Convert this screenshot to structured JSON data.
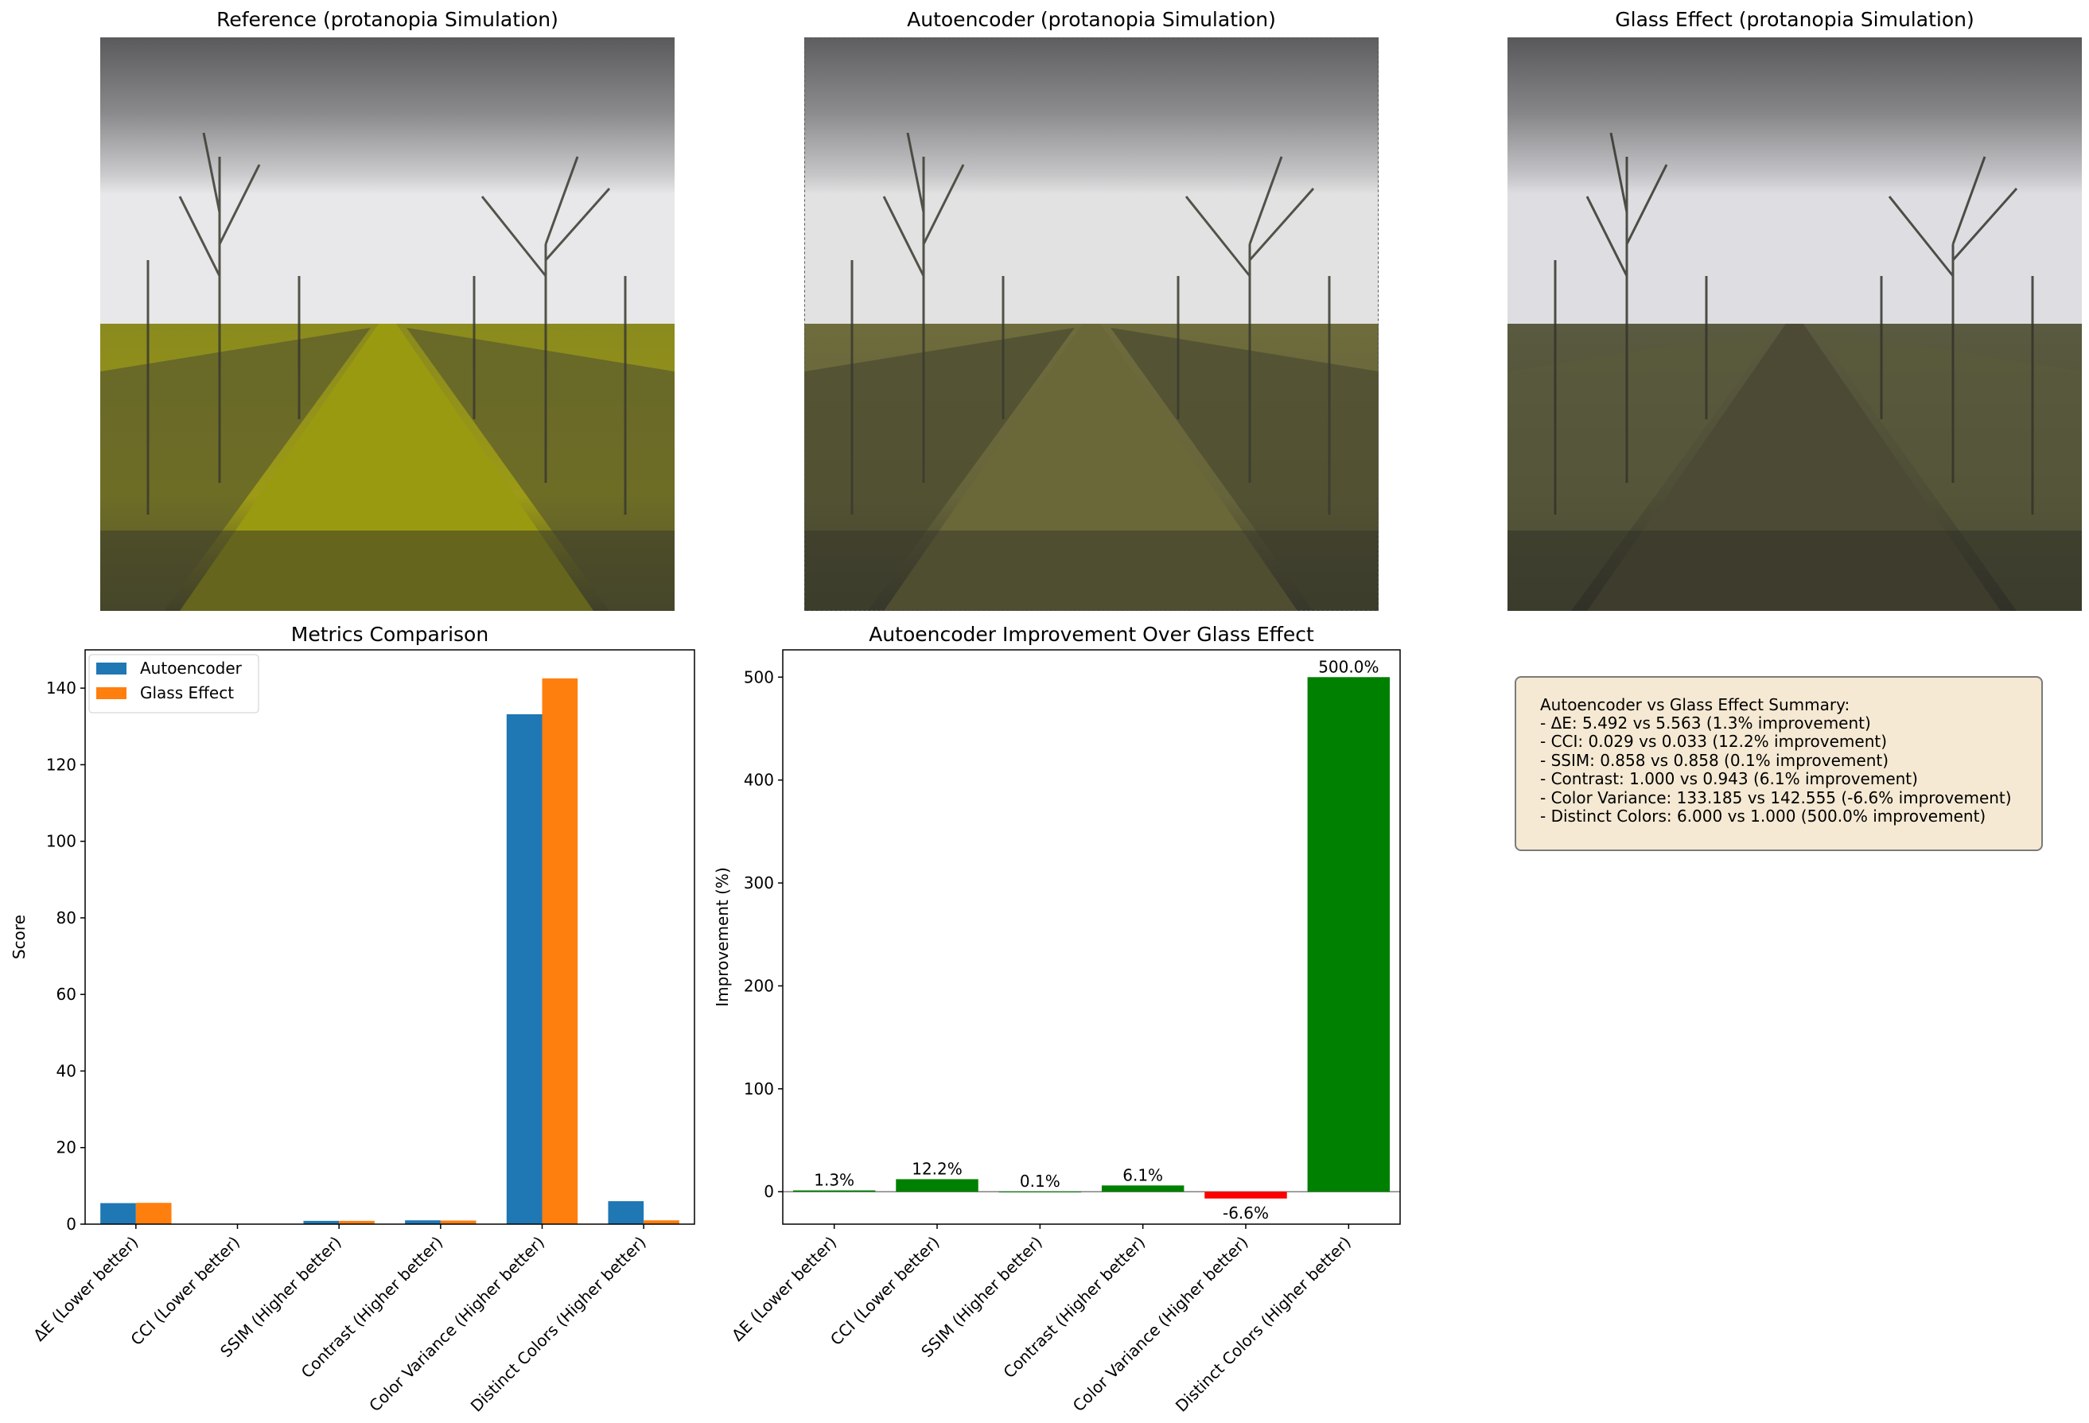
{
  "panels": {
    "reference_title": "Reference (protanopia Simulation)",
    "autoencoder_title": "Autoencoder (protanopia Simulation)",
    "glass_title": "Glass Effect (protanopia Simulation)"
  },
  "colors": {
    "autoencoder": "#1f77b4",
    "glass_effect": "#ff7f0e",
    "positive": "#008000",
    "negative": "#ff0000",
    "summary_bg": "#f5e9d3"
  },
  "summary": {
    "lines": [
      "Autoencoder vs Glass Effect Summary:",
      "- ΔE: 5.492 vs 5.563 (1.3% improvement)",
      "- CCI: 0.029 vs 0.033 (12.2% improvement)",
      "- SSIM: 0.858 vs 0.858 (0.1% improvement)",
      "- Contrast: 1.000 vs 0.943 (6.1% improvement)",
      "- Color Variance: 133.185 vs 142.555 (-6.6% improvement)",
      "- Distinct Colors: 6.000 vs 1.000 (500.0% improvement)"
    ]
  },
  "chart_data": [
    {
      "type": "bar",
      "title": "Metrics Comparison",
      "xlabel": "",
      "ylabel": "Score",
      "categories": [
        "ΔE (Lower better)",
        "CCI (Lower better)",
        "SSIM (Higher better)",
        "Contrast (Higher better)",
        "Color Variance (Higher better)",
        "Distinct Colors (Higher better)"
      ],
      "series": [
        {
          "name": "Autoencoder",
          "values": [
            5.492,
            0.029,
            0.858,
            1.0,
            133.185,
            6.0
          ]
        },
        {
          "name": "Glass Effect",
          "values": [
            5.563,
            0.033,
            0.858,
            0.943,
            142.555,
            1.0
          ]
        }
      ],
      "ylim": [
        0,
        150
      ],
      "yticks": [
        0,
        20,
        40,
        60,
        80,
        100,
        120,
        140
      ],
      "legend": "top-left",
      "grid": false
    },
    {
      "type": "bar",
      "title": "Autoencoder Improvement Over Glass Effect",
      "xlabel": "",
      "ylabel": "Improvement (%)",
      "categories": [
        "ΔE (Lower better)",
        "CCI (Lower better)",
        "SSIM (Higher better)",
        "Contrast (Higher better)",
        "Color Variance (Higher better)",
        "Distinct Colors (Higher better)"
      ],
      "values": [
        1.3,
        12.2,
        0.1,
        6.1,
        -6.6,
        500.0
      ],
      "labels": [
        "1.3%",
        "12.2%",
        "0.1%",
        "6.1%",
        "-6.6%",
        "500.0%"
      ],
      "ylim": [
        -31.5,
        526.5
      ],
      "yticks": [
        0,
        100,
        200,
        300,
        400,
        500
      ],
      "grid": false
    }
  ]
}
